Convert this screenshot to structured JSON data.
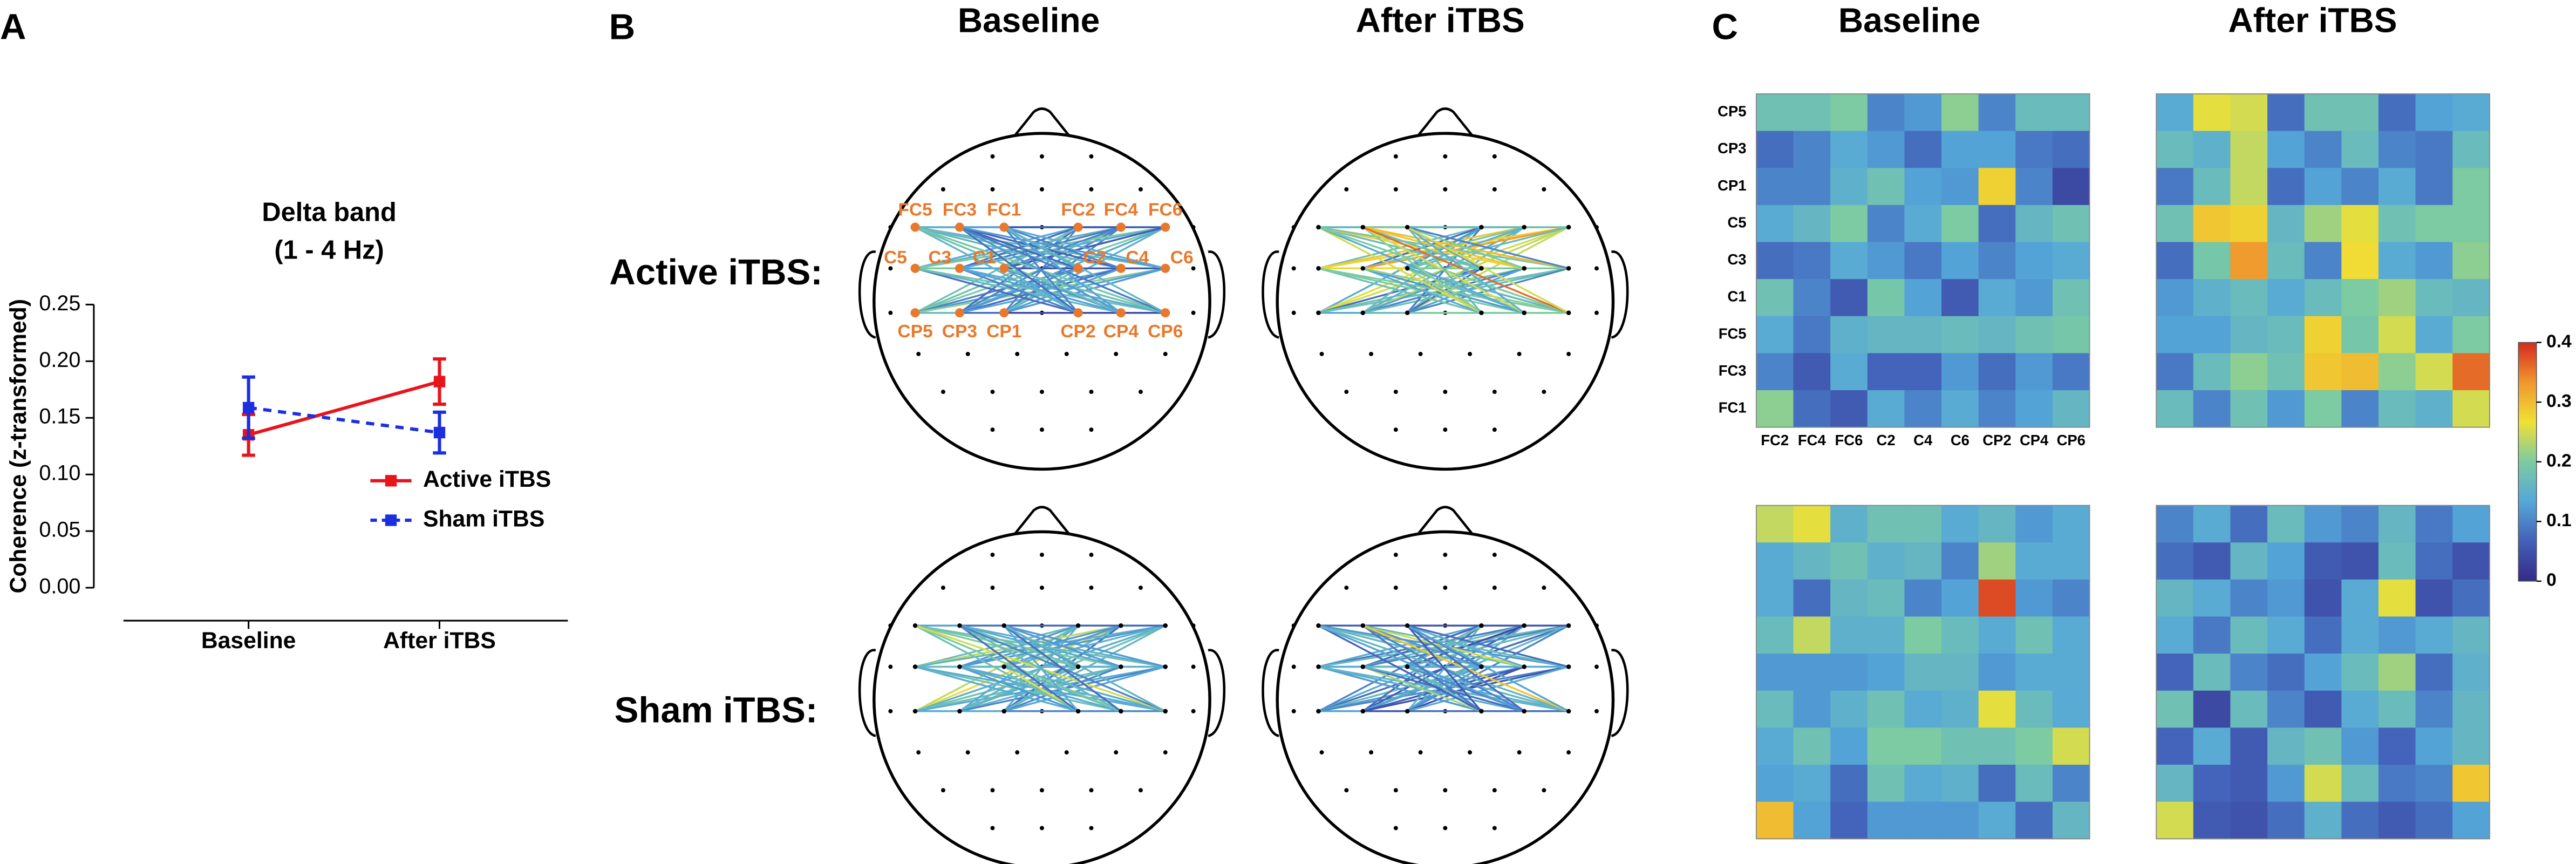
{
  "chart_data": [
    {
      "type": "line",
      "panel": "A",
      "title": "Delta band",
      "subtitle": "(1 - 4 Hz)",
      "ylabel": "Coherence (z-transformed)",
      "categories": [
        "Baseline",
        "After iTBS"
      ],
      "series": [
        {
          "name": "Active iTBS",
          "color": "#e8141c",
          "dashed": false,
          "values": [
            0.135,
            0.182
          ],
          "errors": [
            0.018,
            0.02
          ]
        },
        {
          "name": "Sham iTBS",
          "color": "#1b2fe0",
          "dashed": true,
          "values": [
            0.159,
            0.137
          ],
          "errors": [
            0.027,
            0.018
          ]
        }
      ],
      "ylim": [
        0,
        0.25
      ],
      "yticks": [
        {
          "value": 0,
          "label": "0.00"
        },
        {
          "value": 0.05,
          "label": "0.05"
        },
        {
          "value": 0.1,
          "label": "0.10"
        },
        {
          "value": 0.15,
          "label": "0.15"
        },
        {
          "value": 0.2,
          "label": "0.20"
        },
        {
          "value": 0.25,
          "label": "0.25"
        }
      ],
      "legend": "lower right"
    },
    {
      "type": "heatmap",
      "panels": [
        "B",
        "C"
      ],
      "column_titles": [
        "Baseline",
        "After iTBS"
      ],
      "row_titles": [
        "Active iTBS:",
        "Sham iTBS:"
      ],
      "row_labels": [
        "CP5",
        "CP3",
        "CP1",
        "C5",
        "C3",
        "C1",
        "FC5",
        "FC3",
        "FC1"
      ],
      "col_labels": [
        "FC2",
        "FC4",
        "FC6",
        "C2",
        "C4",
        "C6",
        "CP2",
        "CP4",
        "CP6"
      ],
      "zlim": [
        0,
        0.4
      ],
      "zticks": [
        0,
        0.1,
        0.2,
        0.3,
        0.4
      ],
      "colormap": [
        "#352a87",
        "#4260b8",
        "#55a7d9",
        "#7ccba2",
        "#f0e034",
        "#f0972e",
        "#d42a1e"
      ],
      "label_color": "#e8792c",
      "matrices": [
        [
          [
            [
              0.18,
              0.18,
              0.2,
              0.1,
              0.12,
              0.21,
              0.1,
              0.17,
              0.17
            ],
            [
              0.08,
              0.1,
              0.14,
              0.12,
              0.08,
              0.13,
              0.13,
              0.09,
              0.08
            ],
            [
              0.1,
              0.1,
              0.15,
              0.18,
              0.13,
              0.12,
              0.28,
              0.1,
              0.04
            ],
            [
              0.14,
              0.16,
              0.2,
              0.1,
              0.14,
              0.2,
              0.08,
              0.16,
              0.18
            ],
            [
              0.08,
              0.09,
              0.14,
              0.12,
              0.09,
              0.13,
              0.1,
              0.13,
              0.14
            ],
            [
              0.18,
              0.1,
              0.06,
              0.19,
              0.13,
              0.06,
              0.14,
              0.12,
              0.18
            ],
            [
              0.14,
              0.09,
              0.15,
              0.16,
              0.16,
              0.17,
              0.16,
              0.18,
              0.19
            ],
            [
              0.1,
              0.06,
              0.14,
              0.07,
              0.07,
              0.12,
              0.08,
              0.12,
              0.09
            ],
            [
              0.21,
              0.08,
              0.06,
              0.14,
              0.1,
              0.14,
              0.1,
              0.13,
              0.16
            ]
          ],
          [
            [
              0.14,
              0.26,
              0.25,
              0.08,
              0.18,
              0.18,
              0.08,
              0.13,
              0.14
            ],
            [
              0.17,
              0.15,
              0.24,
              0.13,
              0.1,
              0.17,
              0.1,
              0.09,
              0.17
            ],
            [
              0.09,
              0.17,
              0.24,
              0.08,
              0.13,
              0.1,
              0.14,
              0.09,
              0.2
            ],
            [
              0.18,
              0.29,
              0.28,
              0.16,
              0.22,
              0.26,
              0.18,
              0.2,
              0.2
            ],
            [
              0.08,
              0.19,
              0.33,
              0.17,
              0.1,
              0.27,
              0.14,
              0.12,
              0.21
            ],
            [
              0.12,
              0.15,
              0.17,
              0.14,
              0.17,
              0.2,
              0.22,
              0.17,
              0.16
            ],
            [
              0.13,
              0.13,
              0.16,
              0.17,
              0.28,
              0.19,
              0.25,
              0.14,
              0.2
            ],
            [
              0.09,
              0.17,
              0.21,
              0.18,
              0.29,
              0.3,
              0.21,
              0.25,
              0.36
            ],
            [
              0.17,
              0.1,
              0.18,
              0.12,
              0.2,
              0.1,
              0.17,
              0.15,
              0.25
            ]
          ]
        ],
        [
          [
            [
              0.24,
              0.26,
              0.15,
              0.18,
              0.18,
              0.14,
              0.16,
              0.12,
              0.14
            ],
            [
              0.14,
              0.16,
              0.18,
              0.15,
              0.16,
              0.1,
              0.22,
              0.14,
              0.14
            ],
            [
              0.14,
              0.08,
              0.16,
              0.17,
              0.1,
              0.13,
              0.38,
              0.12,
              0.1
            ],
            [
              0.17,
              0.24,
              0.15,
              0.15,
              0.2,
              0.17,
              0.14,
              0.18,
              0.14
            ],
            [
              0.12,
              0.12,
              0.12,
              0.13,
              0.16,
              0.16,
              0.12,
              0.14,
              0.14
            ],
            [
              0.17,
              0.12,
              0.15,
              0.18,
              0.14,
              0.15,
              0.26,
              0.17,
              0.14
            ],
            [
              0.14,
              0.18,
              0.13,
              0.2,
              0.2,
              0.18,
              0.18,
              0.2,
              0.25
            ],
            [
              0.13,
              0.14,
              0.08,
              0.18,
              0.14,
              0.15,
              0.08,
              0.17,
              0.1
            ],
            [
              0.3,
              0.13,
              0.07,
              0.12,
              0.12,
              0.12,
              0.14,
              0.08,
              0.16
            ]
          ],
          [
            [
              0.1,
              0.14,
              0.08,
              0.17,
              0.12,
              0.1,
              0.16,
              0.09,
              0.13
            ],
            [
              0.08,
              0.06,
              0.16,
              0.13,
              0.06,
              0.05,
              0.17,
              0.08,
              0.05
            ],
            [
              0.16,
              0.14,
              0.1,
              0.12,
              0.05,
              0.14,
              0.26,
              0.05,
              0.08
            ],
            [
              0.14,
              0.09,
              0.17,
              0.14,
              0.08,
              0.14,
              0.12,
              0.14,
              0.16
            ],
            [
              0.07,
              0.17,
              0.1,
              0.08,
              0.13,
              0.17,
              0.22,
              0.08,
              0.15
            ],
            [
              0.18,
              0.04,
              0.17,
              0.1,
              0.06,
              0.14,
              0.17,
              0.1,
              0.16
            ],
            [
              0.07,
              0.14,
              0.06,
              0.16,
              0.18,
              0.12,
              0.07,
              0.13,
              0.16
            ],
            [
              0.16,
              0.07,
              0.06,
              0.12,
              0.25,
              0.17,
              0.09,
              0.1,
              0.29
            ],
            [
              0.25,
              0.06,
              0.05,
              0.08,
              0.15,
              0.08,
              0.06,
              0.08,
              0.13
            ]
          ]
        ]
      ]
    }
  ]
}
